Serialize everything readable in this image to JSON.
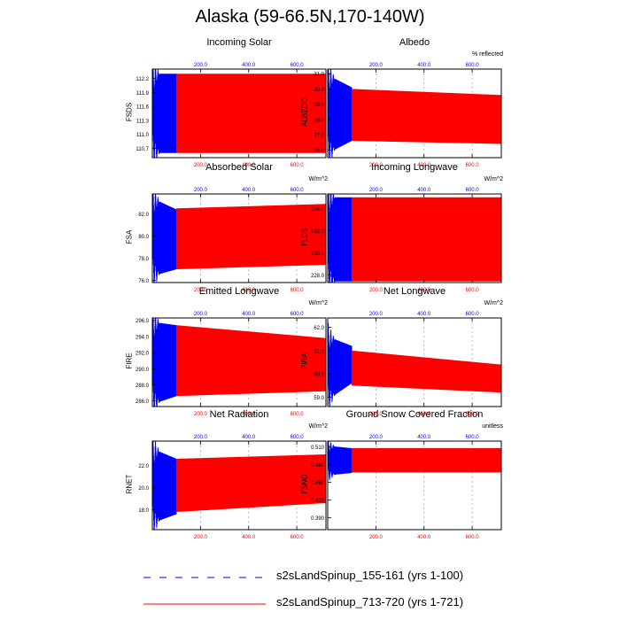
{
  "title": "Alaska (59-66.5N,170-140W)",
  "colors": {
    "exp1": "#0000ff",
    "exp2": "#ff0000",
    "top_ticks": "#0000ff",
    "bottom_ticks": "#ff0000"
  },
  "legend": [
    {
      "label": "s2sLandSpinup_155-161 (yrs 1-100)",
      "color": "#0000ff",
      "style": "dashed"
    },
    {
      "label": "s2sLandSpinup_713-720 (yrs 1-721)",
      "color": "#ff0000",
      "style": "solid"
    }
  ],
  "chart_data": [
    {
      "type": "line",
      "title": "Incoming Solar",
      "units": "",
      "ylabel": "FSDS",
      "top_ticks": [
        "200.0",
        "400.0",
        "600.0"
      ],
      "bottom_ticks": [
        "200.0",
        "400.0",
        "600.0"
      ],
      "ylim": [
        110.5,
        112.4
      ],
      "yticks": [
        "110.7",
        "111.0",
        "111.3",
        "111.6",
        "111.9",
        "112.2"
      ],
      "ytick_values": [
        110.7,
        111.0,
        111.3,
        111.6,
        111.9,
        112.2
      ],
      "xlim": [
        0,
        721
      ],
      "series": [
        {
          "name": "s2sLandSpinup_155-161 (yrs 1-100)",
          "years": 100,
          "min": 110.6,
          "max": 112.3,
          "baseline_min": 110.6,
          "baseline_max": 112.3
        },
        {
          "name": "s2sLandSpinup_713-720 (yrs 1-721)",
          "years": 721,
          "min": 110.6,
          "max": 112.3,
          "baseline_min": 110.6,
          "baseline_max": 112.3
        }
      ]
    },
    {
      "type": "line",
      "title": "Albedo",
      "units": "% reflected",
      "ylabel": "ALBEDO",
      "top_ticks": [
        "200.0",
        "400.0",
        "600.0"
      ],
      "bottom_ticks": [
        "200.0",
        "400.0",
        "600.0"
      ],
      "ylim": [
        25.5,
        31.3
      ],
      "yticks": [
        "26.0",
        "27.0",
        "28.0",
        "29.0",
        "30.0",
        "31.0"
      ],
      "ytick_values": [
        26,
        27,
        28,
        29,
        30,
        31
      ],
      "xlim": [
        0,
        721
      ],
      "series": [
        {
          "name": "s2sLandSpinup_155-161 (yrs 1-100)",
          "years": 100,
          "min": 25.8,
          "max": 30.9,
          "baseline_min": 26.6,
          "baseline_max": 30.1
        },
        {
          "name": "s2sLandSpinup_713-720 (yrs 1-721)",
          "years": 721,
          "min": 26.6,
          "max": 30.0,
          "baseline_min": 26.4,
          "baseline_max": 29.6
        }
      ]
    },
    {
      "type": "line",
      "title": "Absorbed Solar",
      "units": "W/m^2",
      "ylabel": "FSA",
      "top_ticks": [
        "200.0",
        "400.0",
        "600.0"
      ],
      "bottom_ticks": [
        "200.0",
        "400.0",
        "600.0"
      ],
      "ylim": [
        75.8,
        83.8
      ],
      "yticks": [
        "76.0",
        "78.0",
        "80.0",
        "82.0"
      ],
      "ytick_values": [
        76,
        78,
        80,
        82
      ],
      "xlim": [
        0,
        721
      ],
      "series": [
        {
          "name": "s2sLandSpinup_155-161 (yrs 1-100)",
          "years": 100,
          "min": 76.4,
          "max": 83.4,
          "baseline_min": 77.0,
          "baseline_max": 82.4
        },
        {
          "name": "s2sLandSpinup_713-720 (yrs 1-721)",
          "years": 721,
          "min": 77.0,
          "max": 82.5,
          "baseline_min": 77.4,
          "baseline_max": 82.9
        }
      ]
    },
    {
      "type": "line",
      "title": "Incoming Longwave",
      "units": "W/m^2",
      "ylabel": "FLDS",
      "top_ticks": [
        "200.0",
        "400.0",
        "600.0"
      ],
      "bottom_ticks": [
        "200.0",
        "400.0",
        "600.0"
      ],
      "ylim": [
        227.3,
        235.3
      ],
      "yticks": [
        "228.0",
        "230.0",
        "232.0",
        "234.0"
      ],
      "ytick_values": [
        228,
        230,
        232,
        234
      ],
      "xlim": [
        0,
        721
      ],
      "series": [
        {
          "name": "s2sLandSpinup_155-161 (yrs 1-100)",
          "years": 100,
          "min": 227.4,
          "max": 235.0,
          "baseline_min": 227.4,
          "baseline_max": 235.0
        },
        {
          "name": "s2sLandSpinup_713-720 (yrs 1-721)",
          "years": 721,
          "min": 227.4,
          "max": 235.0,
          "baseline_min": 227.4,
          "baseline_max": 235.0
        }
      ]
    },
    {
      "type": "line",
      "title": "Emitted Longwave",
      "units": "W/m^2",
      "ylabel": "FIRE",
      "top_ticks": [
        "200.0",
        "400.0",
        "600.0"
      ],
      "bottom_ticks": [
        "200.0",
        "400.0",
        "600.0"
      ],
      "ylim": [
        285.3,
        296.3
      ],
      "yticks": [
        "286.0",
        "288.0",
        "290.0",
        "292.0",
        "294.0",
        "296.0"
      ],
      "ytick_values": [
        286,
        288,
        290,
        292,
        294,
        296
      ],
      "xlim": [
        0,
        721
      ],
      "series": [
        {
          "name": "s2sLandSpinup_155-161 (yrs 1-100)",
          "years": 100,
          "min": 285.6,
          "max": 295.8,
          "baseline_min": 286.6,
          "baseline_max": 295.4
        },
        {
          "name": "s2sLandSpinup_713-720 (yrs 1-721)",
          "years": 721,
          "min": 286.6,
          "max": 295.4,
          "baseline_min": 287.2,
          "baseline_max": 293.8
        }
      ]
    },
    {
      "type": "line",
      "title": "Net Longwave",
      "units": "W/m^2",
      "ylabel": "FIRA",
      "top_ticks": [
        "200.0",
        "400.0",
        "600.0"
      ],
      "bottom_ticks": [
        "200.0",
        "400.0",
        "600.0"
      ],
      "ylim": [
        58.6,
        62.4
      ],
      "yticks": [
        "59.0",
        "60.0",
        "61.0",
        "62.0"
      ],
      "ytick_values": [
        59,
        60,
        61,
        62
      ],
      "xlim": [
        0,
        721
      ],
      "series": [
        {
          "name": "s2sLandSpinup_155-161 (yrs 1-100)",
          "years": 100,
          "min": 58.9,
          "max": 61.6,
          "baseline_min": 59.6,
          "baseline_max": 61.2
        },
        {
          "name": "s2sLandSpinup_713-720 (yrs 1-721)",
          "years": 721,
          "min": 59.5,
          "max": 61.0,
          "baseline_min": 59.2,
          "baseline_max": 60.4
        }
      ]
    },
    {
      "type": "line",
      "title": "Net Radiation",
      "units": "W/m^2",
      "ylabel": "RNET",
      "top_ticks": [
        "200.0",
        "400.0",
        "600.0"
      ],
      "bottom_ticks": [
        "200.0",
        "400.0",
        "600.0"
      ],
      "ylim": [
        16.2,
        24.2
      ],
      "yticks": [
        "18.0",
        "20.0",
        "22.0"
      ],
      "ytick_values": [
        18,
        20,
        22
      ],
      "xlim": [
        0,
        721
      ],
      "series": [
        {
          "name": "s2sLandSpinup_155-161 (yrs 1-100)",
          "years": 100,
          "min": 16.8,
          "max": 23.5,
          "baseline_min": 17.6,
          "baseline_max": 22.6
        },
        {
          "name": "s2sLandSpinup_713-720 (yrs 1-721)",
          "years": 721,
          "min": 17.8,
          "max": 22.6,
          "baseline_min": 18.6,
          "baseline_max": 23.0
        }
      ]
    },
    {
      "type": "line",
      "title": "Ground Snow Covered Fraction",
      "units": "unitless",
      "ylabel": "FSNO",
      "top_ticks": [
        "200.0",
        "400.0",
        "600.0"
      ],
      "bottom_ticks": [
        "200.0",
        "400.0",
        "600.0"
      ],
      "ylim": [
        0.37,
        0.52
      ],
      "yticks": [
        "0.390",
        "0.420",
        "0.450",
        "0.480",
        "0.510"
      ],
      "ytick_values": [
        0.39,
        0.42,
        0.45,
        0.48,
        0.51
      ],
      "xlim": [
        0,
        721
      ],
      "series": [
        {
          "name": "s2sLandSpinup_155-161 (yrs 1-100)",
          "years": 100,
          "min": 0.462,
          "max": 0.512,
          "baseline_min": 0.466,
          "baseline_max": 0.508
        },
        {
          "name": "s2sLandSpinup_713-720 (yrs 1-721)",
          "years": 721,
          "min": 0.467,
          "max": 0.508,
          "baseline_min": 0.467,
          "baseline_max": 0.508
        }
      ]
    }
  ]
}
